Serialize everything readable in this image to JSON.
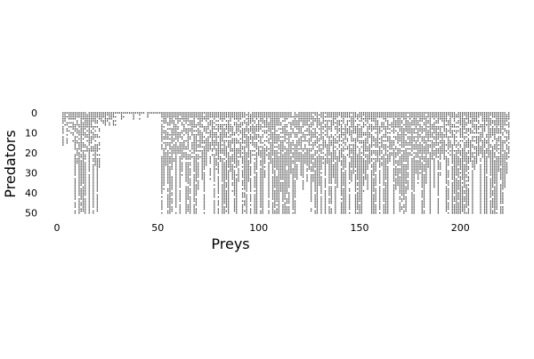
{
  "chart_data": {
    "type": "heatmap",
    "title": "",
    "xlabel": "Preys",
    "ylabel": "Predators",
    "xlim": [
      0,
      225
    ],
    "ylim": [
      0,
      51
    ],
    "y_inverted": true,
    "n_prey": 225,
    "n_predators": 51,
    "x_ticks": [
      0,
      50,
      100,
      150,
      200
    ],
    "y_ticks": [
      0,
      10,
      20,
      30,
      40,
      50
    ],
    "grid": false,
    "legend": "none",
    "marker_color": "#000000",
    "background_color": "#ffffff"
  }
}
